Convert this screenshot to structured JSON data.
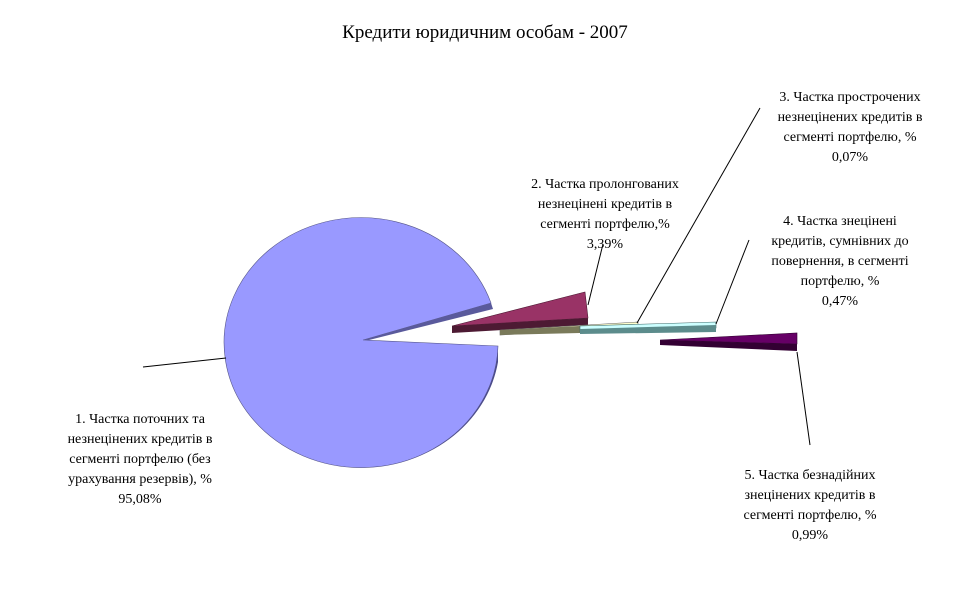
{
  "chart_data": {
    "type": "pie",
    "title": "Кредити юридичним особам - 2007",
    "slices": [
      {
        "label": "1. Частка поточних та\nнезнецінених кредитів в\nсегменті портфелю (без\nурахування резервів), %",
        "value": 95.08,
        "value_label": "95,08%",
        "color": "#9999ff"
      },
      {
        "label": "2. Частка пролонгованих\nнезнецінені кредитів в\nсегменті портфелю,%",
        "value": 3.39,
        "value_label": "3,39%",
        "color": "#993366"
      },
      {
        "label": "3. Частка  прострочених\nнезнецінених кредитів в\nсегменті портфелю, %",
        "value": 0.07,
        "value_label": "0,07%",
        "color": "#ffffcc"
      },
      {
        "label": "4. Частка знецінені\nкредитів, сумнівних до\nповернення, в сегменті\nпортфелю, %",
        "value": 0.47,
        "value_label": "0,47%",
        "color": "#ccffff"
      },
      {
        "label": "5. Частка безнадійних\nзнецінених кредитів в\nсегменті портфелю, %",
        "value": 0.99,
        "value_label": "0,99%",
        "color": "#660066"
      }
    ],
    "legend": "none"
  }
}
